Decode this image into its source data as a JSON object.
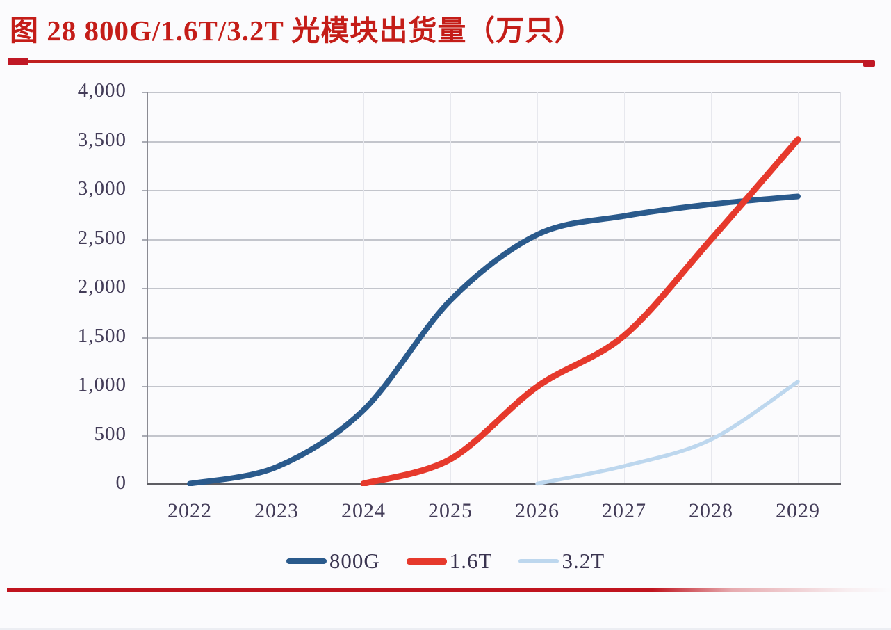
{
  "figure": {
    "title": "图 28 800G/1.6T/3.2T 光模块出货量（万只）",
    "unit_note": "万只"
  },
  "colors": {
    "title_red": "#c41d18",
    "rule_red": "#c01825",
    "bottom_bar_red": "#c0141e",
    "axis_text": "#433c58",
    "gridline": "#c3c5cc",
    "axis_line": "#5d5d63",
    "series_800g": "#2a5a8c",
    "series_1_6t": "#e6392c",
    "series_3_2t": "#bdd7ee"
  },
  "chart_data": {
    "type": "line",
    "title": "图 28 800G/1.6T/3.2T 光模块出货量（万只）",
    "xlabel": "",
    "ylabel": "",
    "categories": [
      "2022",
      "2023",
      "2024",
      "2025",
      "2026",
      "2027",
      "2028",
      "2029"
    ],
    "series": [
      {
        "name": "800G",
        "color": "#2a5a8c",
        "stroke_width": 8,
        "values": [
          10,
          180,
          760,
          1880,
          2550,
          2740,
          2860,
          2940
        ]
      },
      {
        "name": "1.6T",
        "color": "#e6392c",
        "stroke_width": 9,
        "values": [
          null,
          null,
          10,
          260,
          1000,
          1520,
          2500,
          3520
        ]
      },
      {
        "name": "3.2T",
        "color": "#bdd7ee",
        "stroke_width": 5.5,
        "values": [
          null,
          null,
          null,
          null,
          10,
          190,
          460,
          1050
        ]
      }
    ],
    "ylim": [
      0,
      4000
    ],
    "ytick_step": 500,
    "ytick_labels": [
      "0",
      "500",
      "1,000",
      "1,500",
      "2,000",
      "2,500",
      "3,000",
      "3,500",
      "4,000"
    ],
    "grid": "horizontal-major",
    "legend_position": "bottom"
  }
}
